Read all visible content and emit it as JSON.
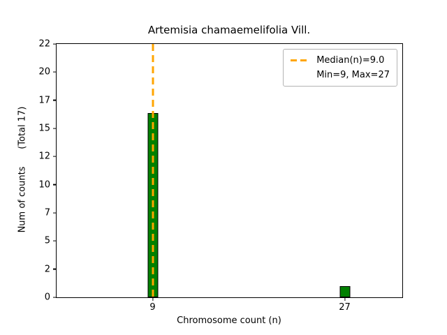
{
  "chart_data": {
    "type": "bar",
    "title": "Artemisia chamaemelifolia Vill.",
    "xlabel": "Chromosome count (n)",
    "ylabel": "Num of counts      (Total 17)",
    "categories": [
      9,
      27
    ],
    "values": [
      16,
      1
    ],
    "total_counts": 17,
    "xlim": [
      0,
      32.4
    ],
    "ylim": [
      0,
      22
    ],
    "yticks": [
      0,
      2,
      5,
      7,
      10,
      12,
      15,
      17,
      20,
      22
    ],
    "bar_color": "#008000",
    "bar_edge_color": "#000000",
    "median": 9.0,
    "median_line_color": "#FFA500",
    "grid": false,
    "legend_position": "upper-right",
    "legend": [
      {
        "sample": "median-dashed-line",
        "label": "Median(n)=9.0"
      },
      {
        "sample": "none",
        "label": "Min=9, Max=27"
      }
    ]
  }
}
